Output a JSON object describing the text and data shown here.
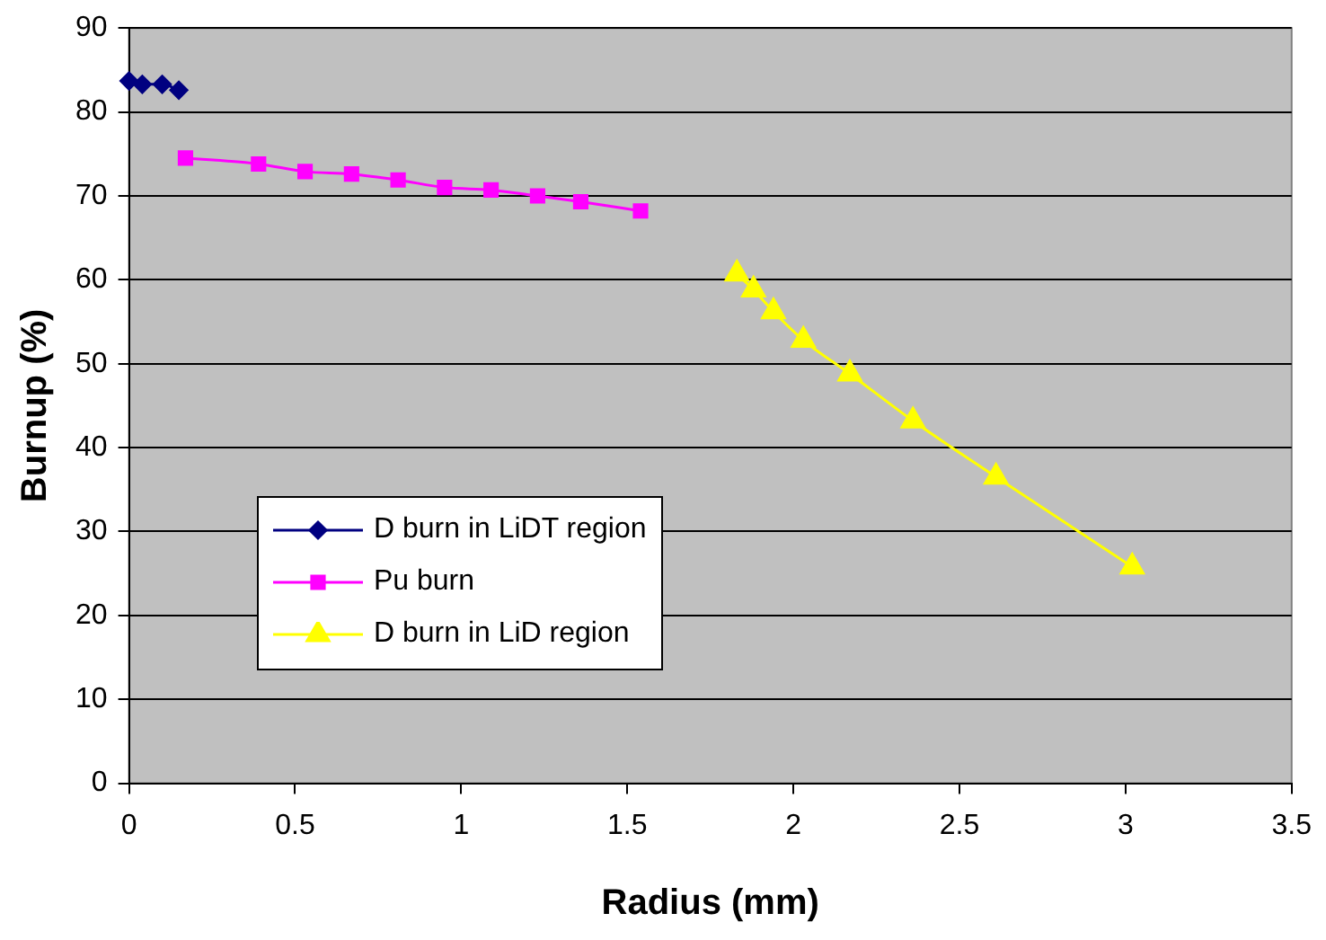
{
  "chart_data": {
    "type": "line",
    "xlabel": "Radius (mm)",
    "ylabel": "Burnup (%)",
    "xlim": [
      0,
      3.5
    ],
    "xticks": [
      0,
      0.5,
      1,
      1.5,
      2,
      2.5,
      3,
      3.5
    ],
    "ylim": [
      0,
      90
    ],
    "yticks": [
      0,
      10,
      20,
      30,
      40,
      50,
      60,
      70,
      80,
      90
    ],
    "grid": "y",
    "legend": "bottom left",
    "series": [
      {
        "name": "D burn in LiDT region",
        "color": "#000080",
        "marker": "diamond",
        "x": [
          0,
          0.04,
          0.1,
          0.15
        ],
        "values": [
          83.7,
          83.3,
          83.3,
          82.6
        ]
      },
      {
        "name": "Pu burn",
        "color": "#ff00ff",
        "marker": "square",
        "x": [
          0.17,
          0.39,
          0.53,
          0.67,
          0.81,
          0.95,
          1.09,
          1.23,
          1.36,
          1.54
        ],
        "values": [
          74.5,
          73.8,
          72.9,
          72.6,
          71.9,
          71.0,
          70.7,
          70.0,
          69.3,
          68.2
        ]
      },
      {
        "name": "D burn in LiD region",
        "color": "#ffff00",
        "marker": "triangle",
        "x": [
          1.83,
          1.88,
          1.94,
          2.03,
          2.17,
          2.36,
          2.61,
          3.02
        ],
        "values": [
          60.7,
          58.8,
          56.2,
          52.8,
          48.8,
          43.2,
          36.5,
          25.8
        ]
      }
    ]
  }
}
